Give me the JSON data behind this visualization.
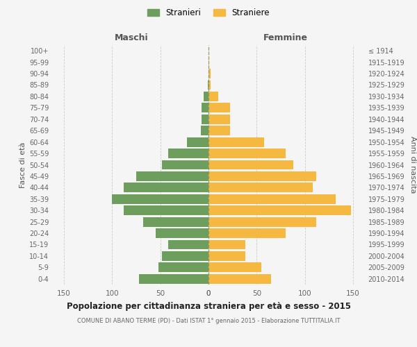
{
  "age_groups": [
    "0-4",
    "5-9",
    "10-14",
    "15-19",
    "20-24",
    "25-29",
    "30-34",
    "35-39",
    "40-44",
    "45-49",
    "50-54",
    "55-59",
    "60-64",
    "65-69",
    "70-74",
    "75-79",
    "80-84",
    "85-89",
    "90-94",
    "95-99",
    "100+"
  ],
  "birth_years": [
    "2010-2014",
    "2005-2009",
    "2000-2004",
    "1995-1999",
    "1990-1994",
    "1985-1989",
    "1980-1984",
    "1975-1979",
    "1970-1974",
    "1965-1969",
    "1960-1964",
    "1955-1959",
    "1950-1954",
    "1945-1949",
    "1940-1944",
    "1935-1939",
    "1930-1934",
    "1925-1929",
    "1920-1924",
    "1915-1919",
    "≤ 1914"
  ],
  "males": [
    72,
    52,
    48,
    42,
    55,
    68,
    88,
    100,
    88,
    75,
    48,
    42,
    22,
    8,
    7,
    7,
    5,
    1,
    0,
    0,
    0
  ],
  "females": [
    65,
    55,
    38,
    38,
    80,
    112,
    148,
    132,
    108,
    112,
    88,
    80,
    58,
    22,
    22,
    22,
    10,
    2,
    2,
    1,
    0
  ],
  "male_color": "#6d9e5e",
  "female_color": "#f5b942",
  "background_color": "#f5f5f5",
  "grid_color": "#cccccc",
  "title": "Popolazione per cittadinanza straniera per età e sesso - 2015",
  "subtitle": "COMUNE DI ABANO TERME (PD) - Dati ISTAT 1° gennaio 2015 - Elaborazione TUTTITALIA.IT",
  "legend_male": "Stranieri",
  "legend_female": "Straniere",
  "xlabel_left": "Maschi",
  "xlabel_right": "Femmine",
  "ylabel_left": "Fasce di età",
  "ylabel_right": "Anni di nascita",
  "xlim": 160,
  "xticks": [
    0,
    50,
    100,
    150
  ],
  "bar_height": 0.85
}
